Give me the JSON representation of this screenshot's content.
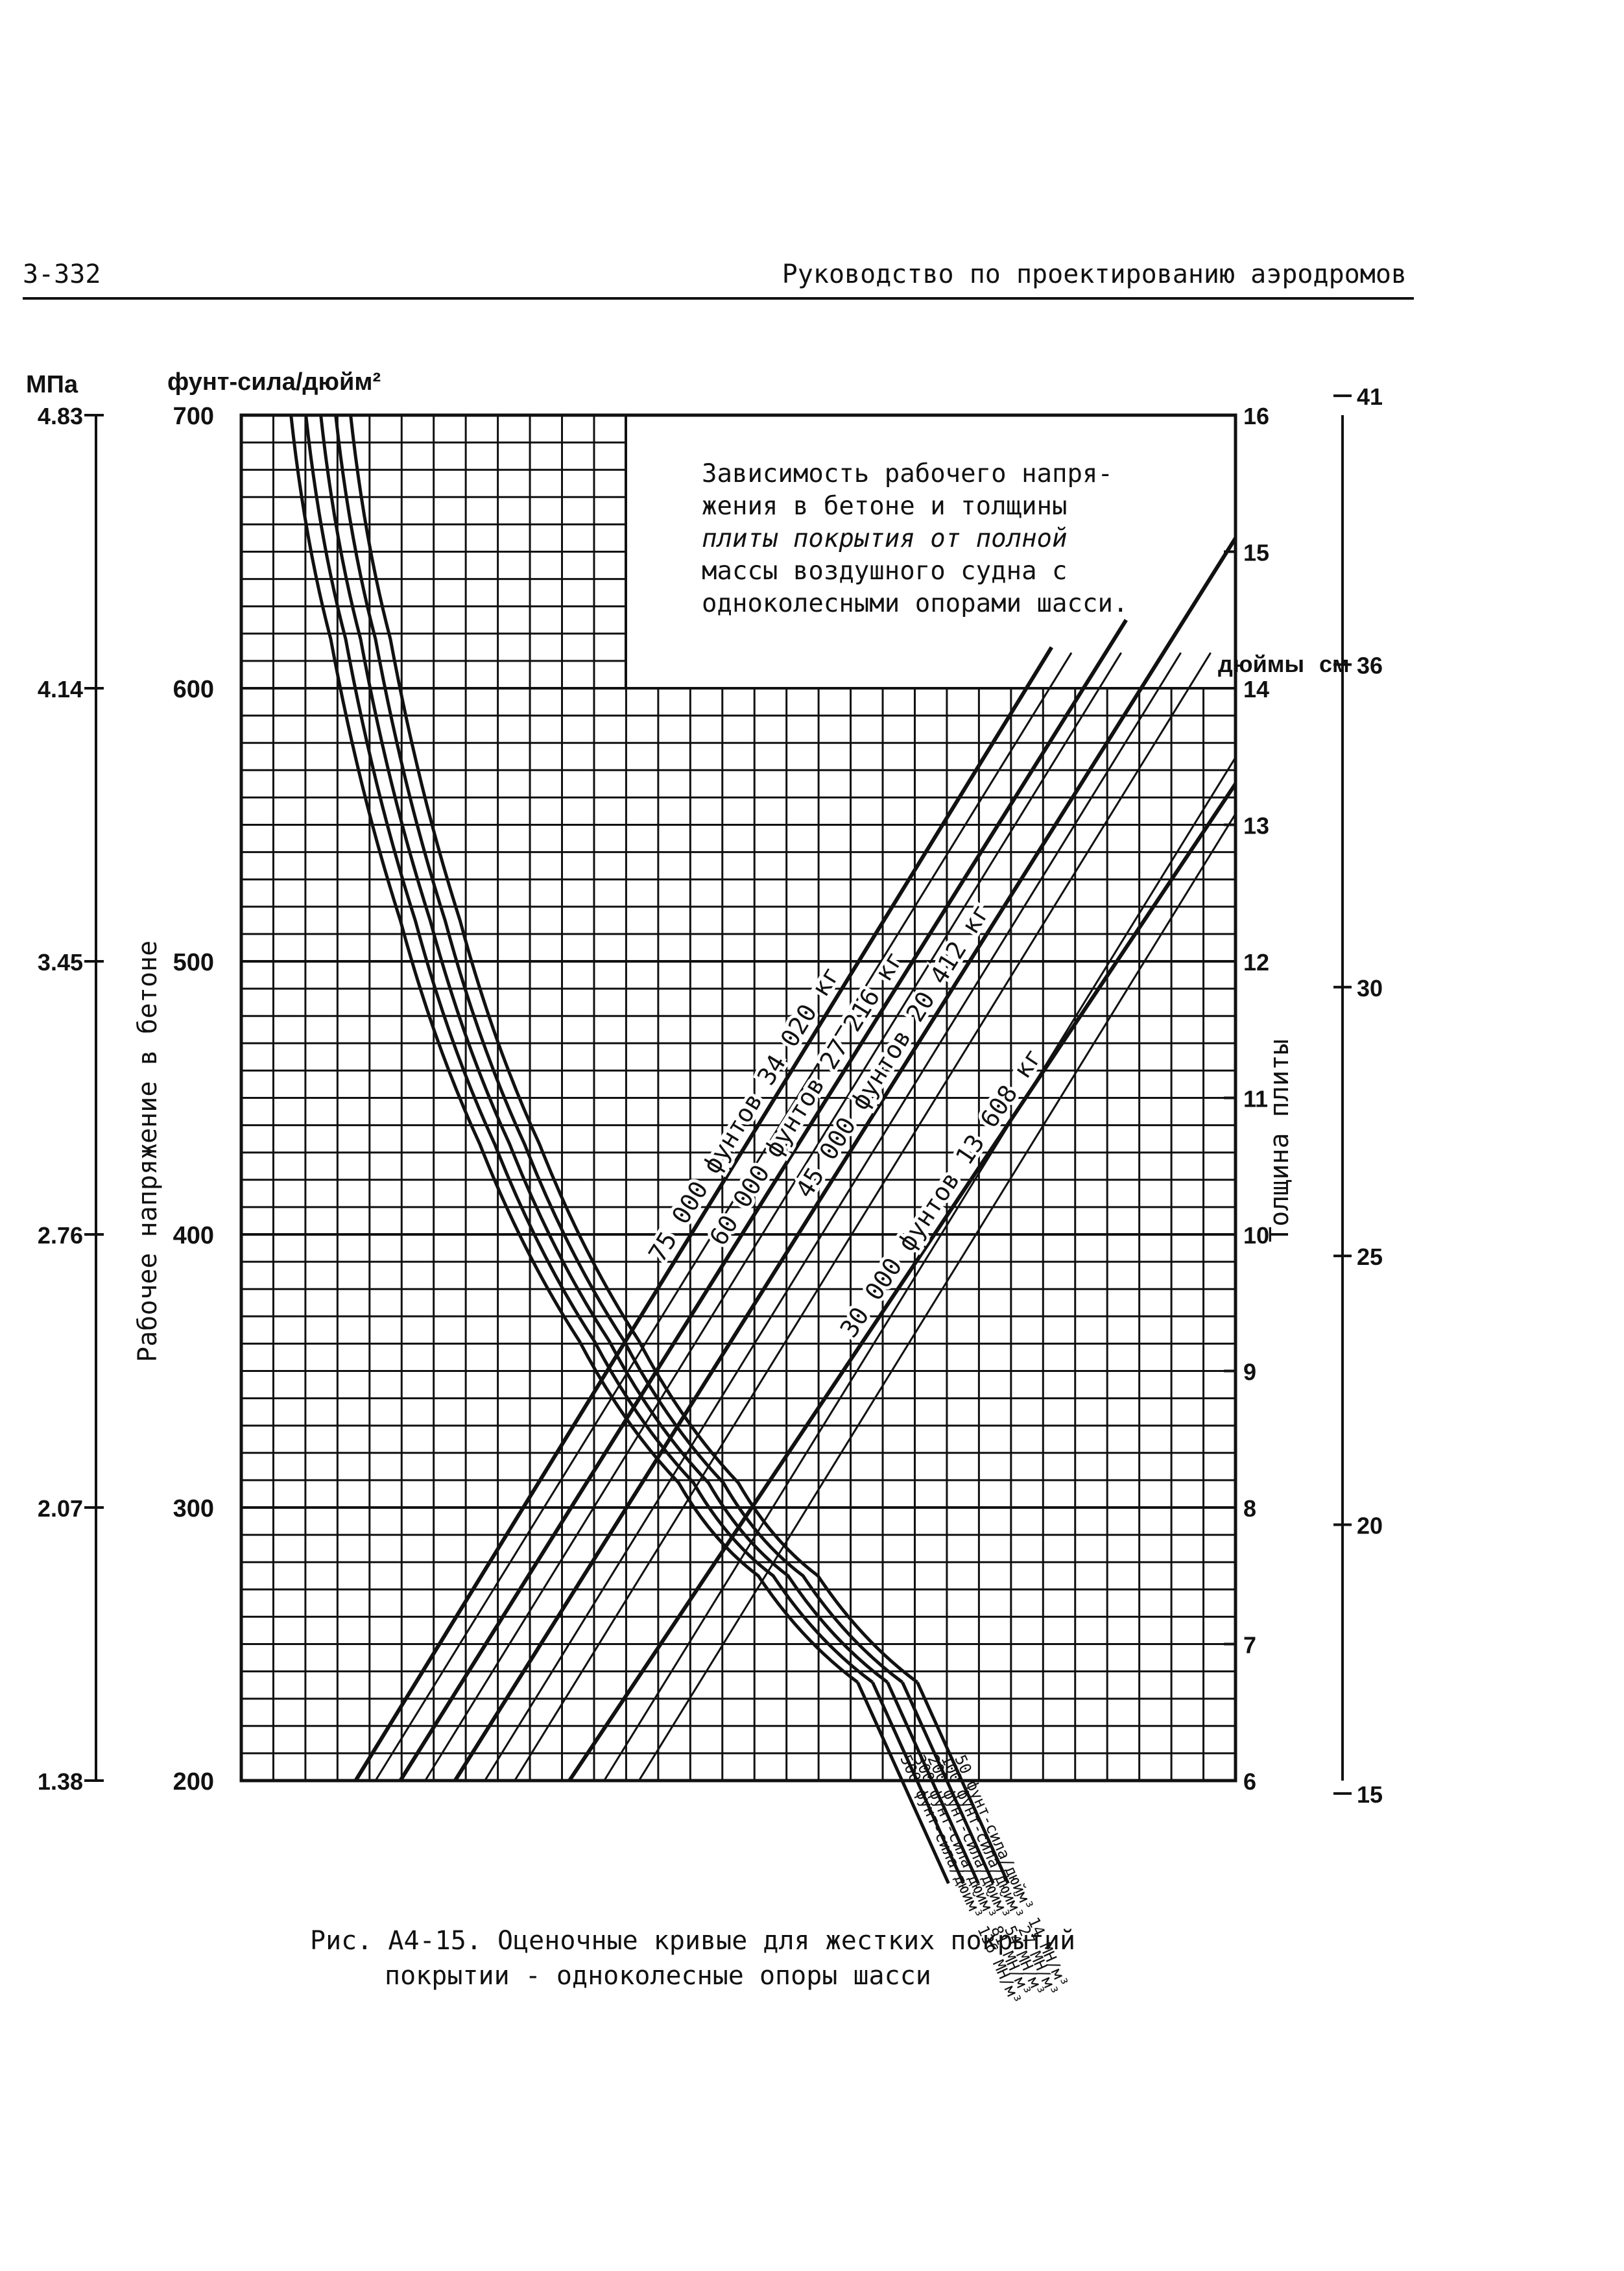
{
  "header": {
    "page_number": "3-332",
    "running_title": "Руководство по проектированию аэродромов"
  },
  "axes": {
    "mpa_title": "МПа",
    "psi_title": "фунт-сила/дюйм²",
    "inch_title": "дюймы",
    "cm_title": "см",
    "left_title": "Рабочее напряжение в бетоне",
    "right_title": "Толщина плиты"
  },
  "note": {
    "line1": "Зависимость рабочего напря-",
    "line2": "жения в бетоне и толщины",
    "line3": "плиты покрытия от полной",
    "line4": "массы воздушного судна с",
    "line5": "одноколесными опорами шасси."
  },
  "caption": {
    "line1": "Рис. А4-15. Оценочные кривые для жестких покрытий",
    "line2": "покрытии - одноколесные опоры шасси"
  },
  "chart_data": {
    "type": "line",
    "title": "",
    "y_axis_stress": {
      "label": "Рабочее напряжение в бетоне",
      "unit": "фунт-сила/дюйм²",
      "range": [
        200,
        700
      ],
      "ticks": [
        "200",
        "300",
        "400",
        "500",
        "600",
        "700"
      ],
      "mpa_unit": "МПа",
      "mpa_ticks": [
        "1.38",
        "2.07",
        "2.76",
        "3.45",
        "4.14",
        "4.83"
      ]
    },
    "y_axis_thickness": {
      "label": "Толщина плиты",
      "unit": "дюймы",
      "range": [
        6,
        16
      ],
      "ticks": [
        "6",
        "7",
        "8",
        "9",
        "10",
        "11",
        "12",
        "13",
        "14",
        "15",
        "16"
      ],
      "cm_unit": "см",
      "cm_ticks": [
        "15",
        "20",
        "25",
        "30",
        "36",
        "41"
      ]
    },
    "grid": true,
    "weight_lines": [
      {
        "name": "75 000 фунтов 34 020 кг",
        "points": [
          [
            0.115,
            200
          ],
          [
            0.815,
            615
          ]
        ]
      },
      {
        "name": "60 000 фунтов 27 216 кг",
        "points": [
          [
            0.16,
            200
          ],
          [
            0.89,
            625
          ]
        ]
      },
      {
        "name": "45 000 фунтов 20 412 кг",
        "points": [
          [
            0.215,
            200
          ],
          [
            1.0,
            655
          ]
        ]
      },
      {
        "name": "30 000 фунтов 13 608 кг",
        "points": [
          [
            0.33,
            200
          ],
          [
            1.0,
            565
          ]
        ]
      }
    ],
    "k_curves": [
      {
        "name": "50 фунт-сила/дюйм³ 14 МН/м³",
        "points": [
          [
            0.11,
            700
          ],
          [
            0.15,
            618
          ],
          [
            0.22,
            515
          ],
          [
            0.3,
            433
          ],
          [
            0.4,
            361
          ],
          [
            0.5,
            309
          ],
          [
            0.58,
            275
          ],
          [
            0.68,
            236
          ]
        ]
      },
      {
        "name": "100 фунт-сила/дюйм³ 27 МН/м³",
        "points": [
          [
            0.095,
            700
          ],
          [
            0.135,
            618
          ],
          [
            0.205,
            515
          ],
          [
            0.285,
            433
          ],
          [
            0.385,
            361
          ],
          [
            0.485,
            309
          ],
          [
            0.565,
            275
          ],
          [
            0.665,
            236
          ]
        ]
      },
      {
        "name": "200 фунт-сила/дюйм³ 54 МН/м³",
        "points": [
          [
            0.08,
            700
          ],
          [
            0.12,
            618
          ],
          [
            0.19,
            515
          ],
          [
            0.27,
            433
          ],
          [
            0.37,
            361
          ],
          [
            0.47,
            309
          ],
          [
            0.55,
            275
          ],
          [
            0.65,
            236
          ]
        ]
      },
      {
        "name": "300 фунт-сила/дюйм³ 81 МН/м³",
        "points": [
          [
            0.065,
            700
          ],
          [
            0.105,
            618
          ],
          [
            0.175,
            515
          ],
          [
            0.255,
            433
          ],
          [
            0.355,
            361
          ],
          [
            0.455,
            309
          ],
          [
            0.535,
            275
          ],
          [
            0.635,
            236
          ]
        ]
      },
      {
        "name": "500 фунт-сила/дюйм³ 136 МН/м³",
        "points": [
          [
            0.05,
            700
          ],
          [
            0.09,
            618
          ],
          [
            0.16,
            515
          ],
          [
            0.24,
            433
          ],
          [
            0.34,
            361
          ],
          [
            0.44,
            309
          ],
          [
            0.52,
            275
          ],
          [
            0.62,
            236
          ]
        ]
      }
    ]
  }
}
